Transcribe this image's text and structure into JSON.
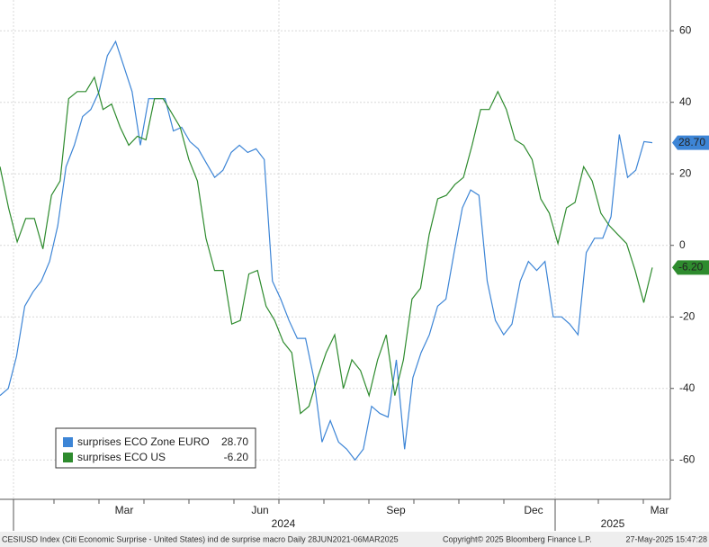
{
  "chart_data": {
    "type": "line",
    "series": [
      {
        "name": "surprises ECO Zone EURO",
        "color": "#3d85d6",
        "last_label": "28.70",
        "values": [
          -42,
          -40,
          -31,
          -17,
          -13,
          -10,
          -4.5,
          5.5,
          22,
          28,
          36,
          38,
          43,
          53,
          57,
          50,
          43,
          28,
          41,
          41,
          41,
          32,
          33,
          29,
          27,
          23,
          19,
          21,
          26,
          28,
          26,
          27,
          24,
          -10,
          -15,
          -21,
          -26,
          -26,
          -37,
          -55,
          -49,
          -55,
          -57,
          -60,
          -57,
          -45,
          -47,
          -48,
          -32,
          -57,
          -37,
          -30,
          -25,
          -17,
          -15,
          -2,
          10.5,
          15.5,
          14,
          -10,
          -21,
          -25,
          -22,
          -10,
          -4.5,
          -7,
          -4.5,
          -20,
          -20,
          -22,
          -25,
          -2,
          2,
          2,
          8,
          31,
          19,
          21,
          29,
          28.7
        ]
      },
      {
        "name": "surprises ECO US",
        "color": "#2e8b2e",
        "last_label": "-6.20",
        "values": [
          22,
          10.5,
          1,
          7.5,
          7.5,
          -1,
          14,
          18,
          41,
          43,
          43,
          47,
          38,
          39.5,
          33,
          28,
          30.5,
          29.5,
          41,
          41,
          37,
          33,
          24,
          18,
          2,
          -7,
          -7,
          -22,
          -21,
          -8,
          -7,
          -17,
          -21,
          -27,
          -30,
          -47,
          -45,
          -37,
          -30,
          -25,
          -40,
          -32,
          -35,
          -42,
          -32,
          -25,
          -42,
          -32,
          -15,
          -12,
          3,
          13,
          14,
          17,
          19,
          28,
          38,
          38,
          43,
          38,
          29.5,
          28,
          24,
          13,
          9,
          0.5,
          10.5,
          12,
          22,
          18,
          9,
          5.5,
          3,
          0.5,
          -7,
          -16,
          -6.2
        ]
      }
    ],
    "ylim": [
      -71,
      68.6
    ],
    "yticks": [
      60,
      40,
      20,
      0,
      -20,
      -40,
      -60
    ],
    "grid": true,
    "x_labels": [
      "Mar",
      "Jun",
      "Sep",
      "Dec",
      "Mar"
    ],
    "year_labels": [
      "2024",
      "2025"
    ],
    "footer": {
      "source": "CESIUSD Index (Citi Economic Surprise - United States) ind de surprise macro  Daily 28JUN2021-06MAR2025",
      "copyright": "Copyright© 2025 Bloomberg Finance L.P.",
      "timestamp": "27-May-2025 15:47:28"
    }
  }
}
